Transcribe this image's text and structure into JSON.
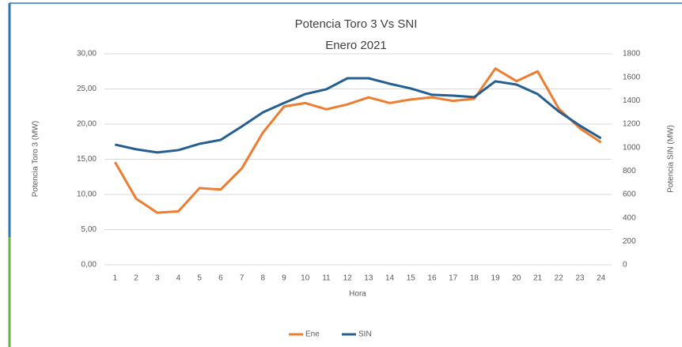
{
  "chart_data": {
    "type": "line",
    "title": "Potencia Toro 3 Vs SNI",
    "subtitle": "Enero 2021",
    "x_label": "Hora",
    "y_label": "Potencia Toro 3 (MW)",
    "y2_label": "Potencia SIN (MW)",
    "categories": [
      "1",
      "2",
      "3",
      "4",
      "5",
      "6",
      "7",
      "8",
      "9",
      "10",
      "11",
      "12",
      "13",
      "14",
      "15",
      "16",
      "17",
      "18",
      "19",
      "20",
      "21",
      "22",
      "23",
      "24"
    ],
    "series": [
      {
        "name": "Ene",
        "color": "#ed7d31",
        "values": [
          14.6,
          9.4,
          7.4,
          7.6,
          10.9,
          10.7,
          13.7,
          18.8,
          22.5,
          23.0,
          22.1,
          22.8,
          23.8,
          23.0,
          23.5,
          23.8,
          23.3,
          23.6,
          27.9,
          26.1,
          27.5,
          22.2,
          19.4,
          17.4
        ]
      },
      {
        "name": "SIN",
        "color": "#255e91",
        "axis": "y2",
        "values": [
          1025,
          985,
          958,
          978,
          1032,
          1065,
          1180,
          1300,
          1380,
          1456,
          1497,
          1591,
          1591,
          1544,
          1504,
          1450,
          1443,
          1430,
          1565,
          1537,
          1456,
          1308,
          1187,
          1079
        ]
      }
    ],
    "ylim": [
      0,
      30
    ],
    "yticks": [
      {
        "value": 0,
        "label": "0,00"
      },
      {
        "value": 5,
        "label": "5,00"
      },
      {
        "value": 10,
        "label": "10,00"
      },
      {
        "value": 15,
        "label": "15,00"
      },
      {
        "value": 20,
        "label": "20,00"
      },
      {
        "value": 25,
        "label": "25,00"
      },
      {
        "value": 30,
        "label": "30,00"
      }
    ],
    "y2lim": [
      0,
      1800
    ],
    "y2ticks": [
      0,
      200,
      400,
      600,
      800,
      1000,
      1200,
      1400,
      1600,
      1800
    ],
    "grid": true,
    "legend": "bottom"
  }
}
